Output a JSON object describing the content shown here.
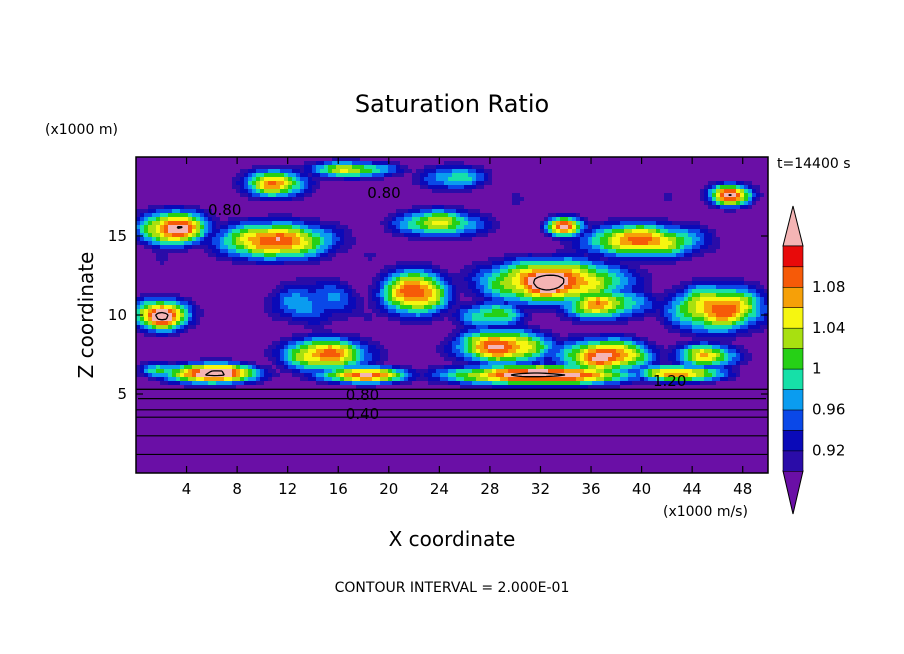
{
  "chart_data": {
    "type": "heatmap",
    "title": "Saturation Ratio",
    "xlabel": "X coordinate",
    "ylabel": "Z coordinate",
    "x_unit": "(x1000 m/s)",
    "y_unit": "(x1000 m)",
    "time_label": "t=14400 s",
    "footer": "CONTOUR INTERVAL = 2.000E-01",
    "xlim": [
      0,
      50
    ],
    "ylim": [
      0,
      20
    ],
    "xticks": [
      "4",
      "8",
      "12",
      "16",
      "20",
      "24",
      "28",
      "32",
      "36",
      "40",
      "44",
      "48"
    ],
    "yticks": [
      "5",
      "10",
      "15"
    ],
    "colorbar": {
      "ticks": [
        "0.92",
        "0.96",
        "1",
        "1.04",
        "1.08"
      ],
      "levels": [
        0.9,
        0.92,
        0.94,
        0.96,
        0.98,
        1.0,
        1.02,
        1.04,
        1.06,
        1.08,
        1.1
      ],
      "colors": [
        "#6a0fa6",
        "#2a0ca8",
        "#0a0ab8",
        "#0a48e8",
        "#0a9cf0",
        "#16e0a8",
        "#26d016",
        "#a8e010",
        "#f6f610",
        "#f6a008",
        "#f65a08",
        "#e80a0a",
        "#f4b4b4"
      ],
      "extend": "both"
    },
    "contour_labels": [
      "0.80",
      "0.80",
      "1.20",
      "0.80",
      "0.40"
    ],
    "structure": {
      "cloud_base_z": 5.3,
      "field_top_z": 20,
      "background_below": 0.4,
      "background_above": 0.86
    },
    "warm_blobs": [
      {
        "x": 3,
        "z": 15.5,
        "rx": 3,
        "rz": 1.2,
        "v": 1.12
      },
      {
        "x": 11,
        "z": 14.7,
        "rx": 5,
        "rz": 1.3,
        "v": 1.1
      },
      {
        "x": 24,
        "z": 15.8,
        "rx": 4,
        "rz": 1.0,
        "v": 1.04
      },
      {
        "x": 40,
        "z": 14.7,
        "rx": 5,
        "rz": 1.2,
        "v": 1.09
      },
      {
        "x": 34,
        "z": 15.6,
        "rx": 1.6,
        "rz": 0.7,
        "v": 1.12
      },
      {
        "x": 11,
        "z": 18.3,
        "rx": 3,
        "rz": 1.0,
        "v": 1.06
      },
      {
        "x": 17,
        "z": 19.2,
        "rx": 4,
        "rz": 0.6,
        "v": 1.04
      },
      {
        "x": 25,
        "z": 18.7,
        "rx": 3,
        "rz": 0.9,
        "v": 1.0
      },
      {
        "x": 47,
        "z": 17.6,
        "rx": 2,
        "rz": 0.8,
        "v": 1.1
      },
      {
        "x": 2,
        "z": 10,
        "rx": 2.5,
        "rz": 1.1,
        "v": 1.12
      },
      {
        "x": 14,
        "z": 10.8,
        "rx": 4,
        "rz": 1.6,
        "v": 0.98
      },
      {
        "x": 22,
        "z": 11.4,
        "rx": 3,
        "rz": 1.6,
        "v": 1.1
      },
      {
        "x": 33,
        "z": 12.1,
        "rx": 6,
        "rz": 1.5,
        "v": 1.13
      },
      {
        "x": 37,
        "z": 10.7,
        "rx": 4,
        "rz": 1.1,
        "v": 1.06
      },
      {
        "x": 46,
        "z": 10.4,
        "rx": 4,
        "rz": 1.6,
        "v": 1.1
      },
      {
        "x": 28,
        "z": 10.0,
        "rx": 3,
        "rz": 1.0,
        "v": 1.02
      },
      {
        "x": 15,
        "z": 7.5,
        "rx": 4,
        "rz": 1.2,
        "v": 1.08
      },
      {
        "x": 29,
        "z": 8.0,
        "rx": 4,
        "rz": 1.2,
        "v": 1.11
      },
      {
        "x": 37,
        "z": 7.4,
        "rx": 4,
        "rz": 1.2,
        "v": 1.11
      },
      {
        "x": 45,
        "z": 7.4,
        "rx": 3,
        "rz": 0.9,
        "v": 1.05
      },
      {
        "x": 6,
        "z": 6.3,
        "rx": 4,
        "rz": 0.7,
        "v": 1.14
      },
      {
        "x": 18,
        "z": 6.2,
        "rx": 4,
        "rz": 0.6,
        "v": 1.1
      },
      {
        "x": 32,
        "z": 6.2,
        "rx": 8,
        "rz": 0.7,
        "v": 1.14
      },
      {
        "x": 43,
        "z": 6.3,
        "rx": 4,
        "rz": 0.6,
        "v": 1.08
      },
      {
        "x": 2,
        "z": 6.5,
        "rx": 2,
        "rz": 0.6,
        "v": 1.0
      }
    ]
  }
}
